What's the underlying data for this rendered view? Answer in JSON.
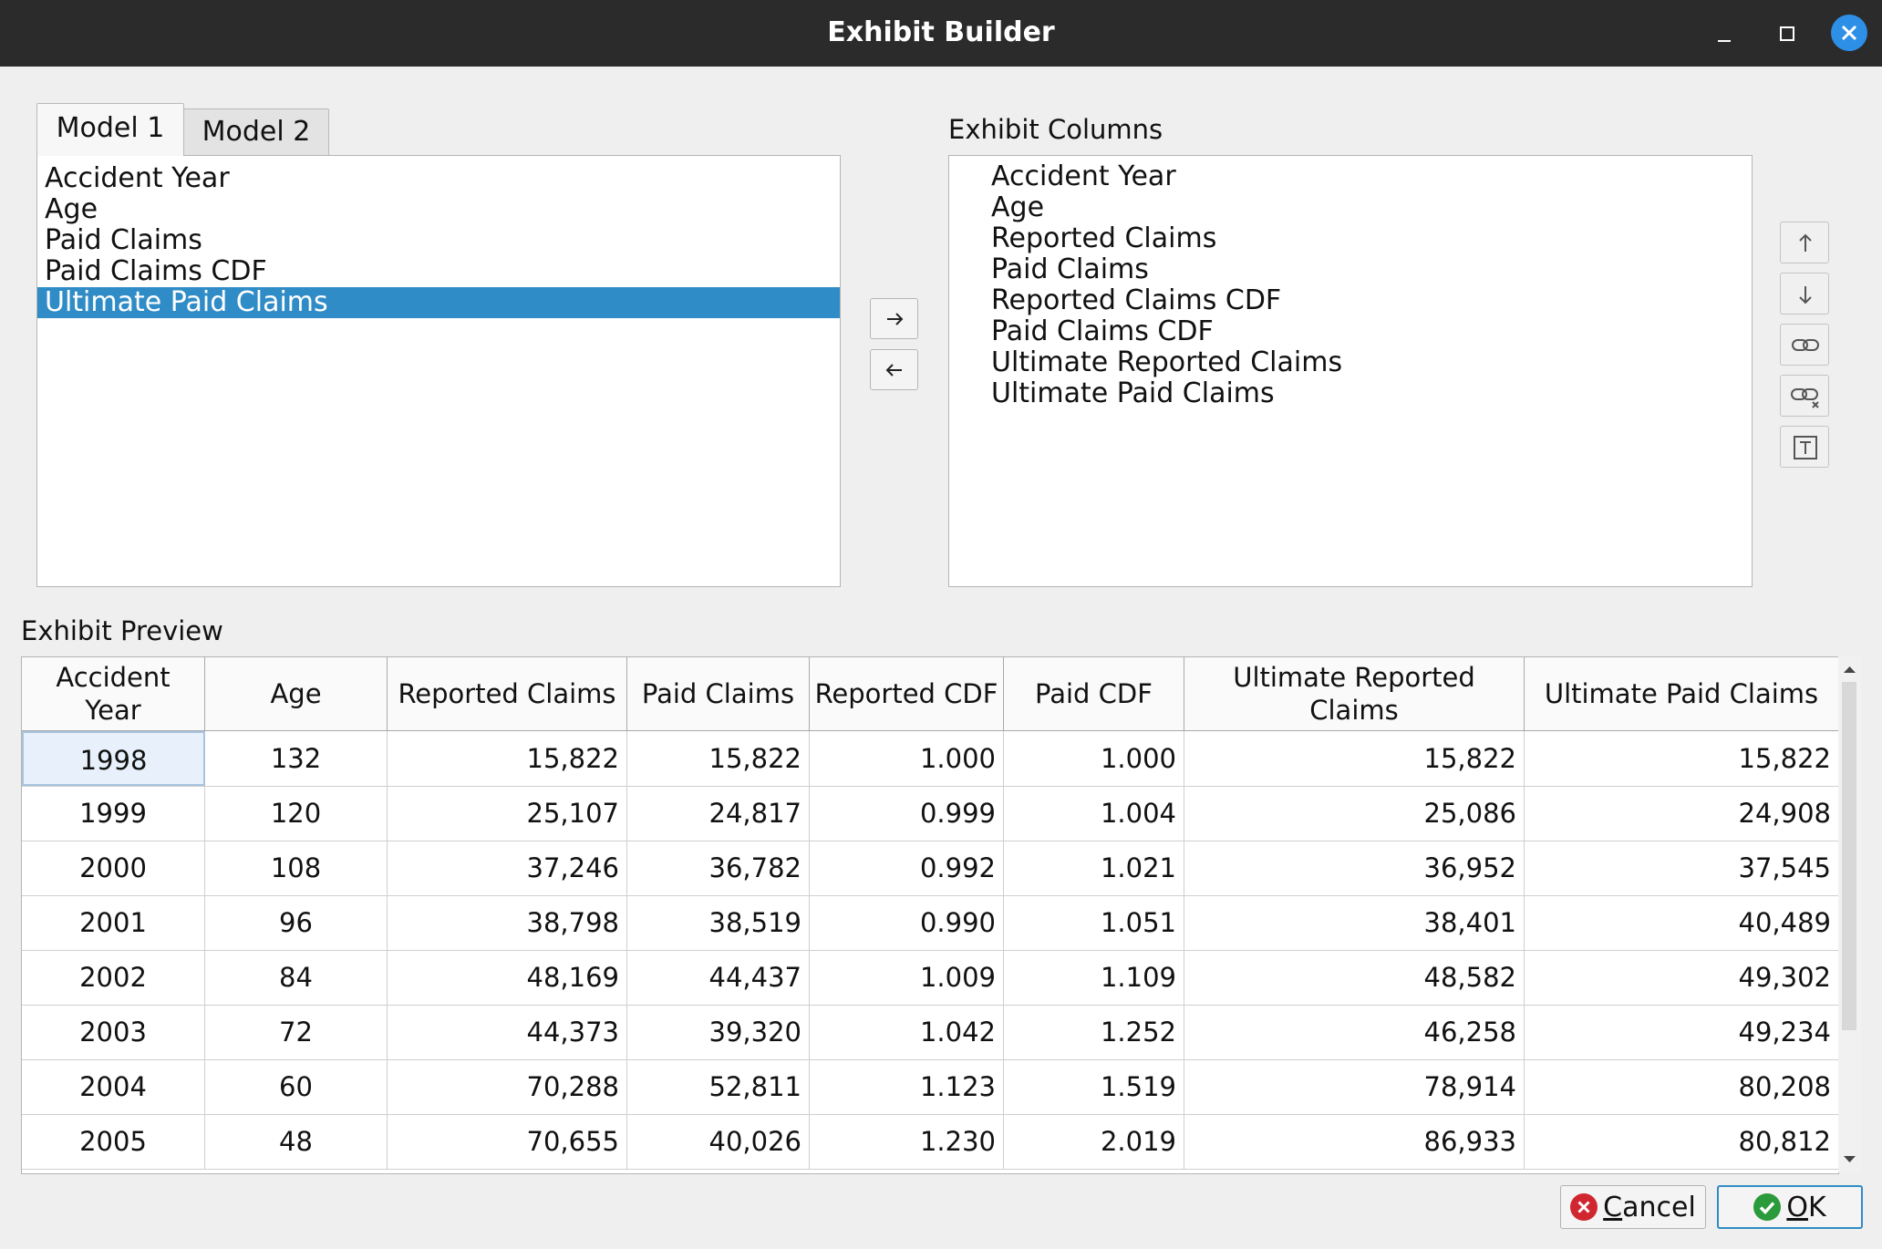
{
  "window": {
    "title": "Exhibit Builder",
    "controls": [
      "minimize-icon",
      "maximize-icon",
      "close-icon"
    ],
    "accent": "#2d8fe6"
  },
  "model_tabs": [
    {
      "label": "Model 1",
      "active": true
    },
    {
      "label": "Model 2",
      "active": false
    }
  ],
  "model_fields": {
    "items": [
      "Accident Year",
      "Age",
      "Paid Claims",
      "Paid Claims CDF",
      "Ultimate Paid Claims"
    ],
    "selected": "Ultimate Paid Claims",
    "selection_color": "#308cc6"
  },
  "transfer_buttons": {
    "add_icon": "arrow-right-icon",
    "remove_icon": "arrow-left-icon"
  },
  "exhibit_columns": {
    "label": "Exhibit Columns",
    "items": [
      "Accident Year",
      "Age",
      "Reported Claims",
      "Paid Claims",
      "Reported Claims CDF",
      "Paid Claims CDF",
      "Ultimate Reported Claims",
      "Ultimate Paid Claims"
    ]
  },
  "column_tools": [
    "arrow-up-icon",
    "arrow-down-icon",
    "link-icon",
    "unlink-icon",
    "text-icon"
  ],
  "preview": {
    "label": "Exhibit Preview",
    "headers": [
      "Accident\nYear",
      "Age",
      "Reported Claims",
      "Paid Claims",
      "Reported CDF",
      "Paid CDF",
      "Ultimate Reported Claims",
      "Ultimate Paid Claims"
    ],
    "rows": [
      [
        "1998",
        "132",
        "15,822",
        "15,822",
        "1.000",
        "1.000",
        "15,822",
        "15,822"
      ],
      [
        "1999",
        "120",
        "25,107",
        "24,817",
        "0.999",
        "1.004",
        "25,086",
        "24,908"
      ],
      [
        "2000",
        "108",
        "37,246",
        "36,782",
        "0.992",
        "1.021",
        "36,952",
        "37,545"
      ],
      [
        "2001",
        "96",
        "38,798",
        "38,519",
        "0.990",
        "1.051",
        "38,401",
        "40,489"
      ],
      [
        "2002",
        "84",
        "48,169",
        "44,437",
        "1.009",
        "1.109",
        "48,582",
        "49,302"
      ],
      [
        "2003",
        "72",
        "44,373",
        "39,320",
        "1.042",
        "1.252",
        "46,258",
        "49,234"
      ],
      [
        "2004",
        "60",
        "70,288",
        "52,811",
        "1.123",
        "1.519",
        "78,914",
        "80,208"
      ],
      [
        "2005",
        "48",
        "70,655",
        "40,026",
        "1.230",
        "2.019",
        "86,933",
        "80,812"
      ]
    ]
  },
  "buttons": {
    "cancel": {
      "mnemonic": "C",
      "rest": "ancel",
      "icon": "cancel-icon",
      "icon_color": "#d0262f"
    },
    "ok": {
      "mnemonic": "O",
      "rest": "K",
      "icon": "ok-icon",
      "icon_color": "#2a9a3a"
    }
  }
}
